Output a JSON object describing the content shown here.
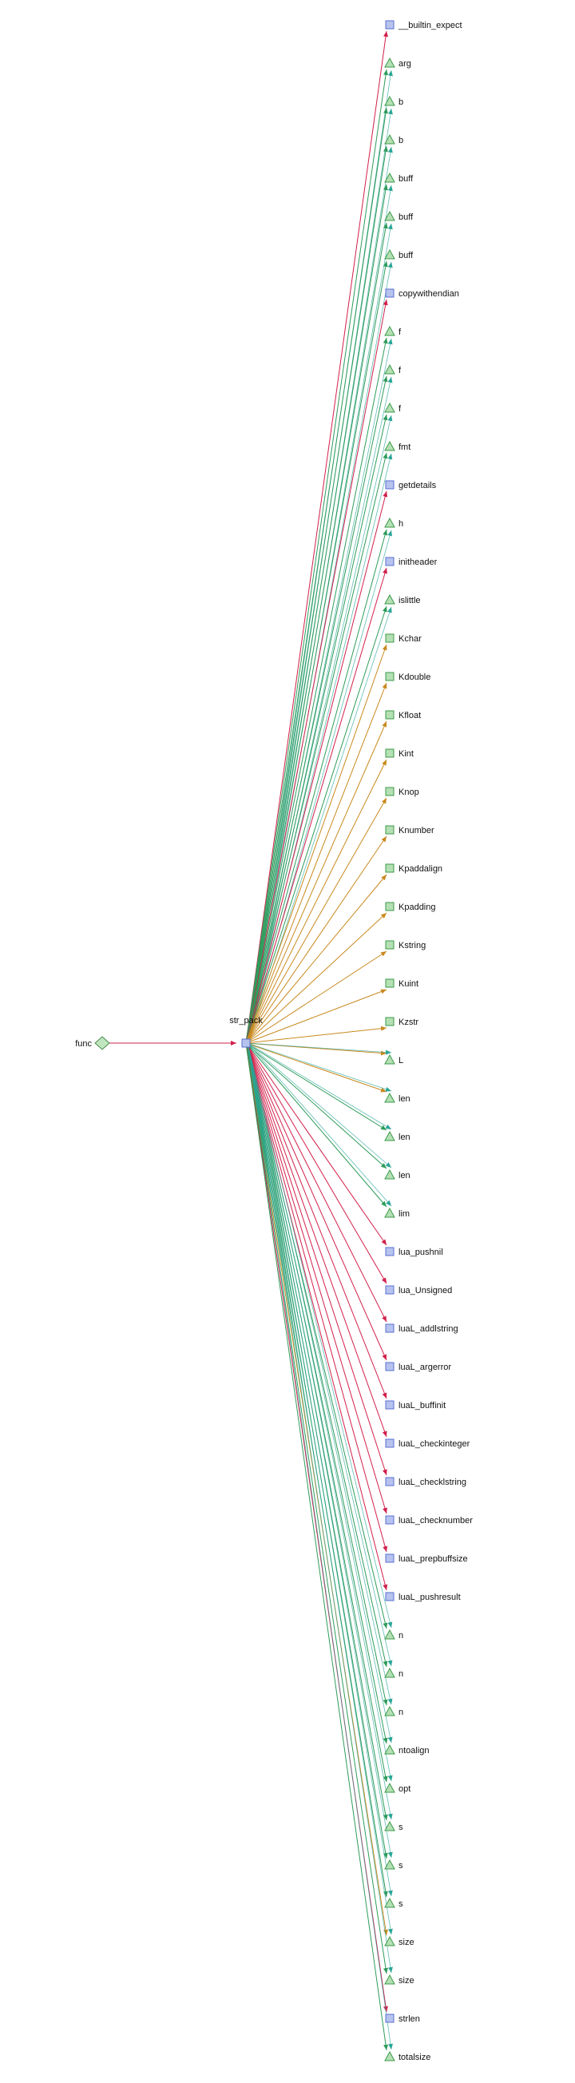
{
  "source": {
    "label": "func",
    "shape": "diamond"
  },
  "center": {
    "label": "str_pack",
    "shape": "square"
  },
  "colors": {
    "square_fill": "#b7c3ef",
    "square_stroke": "#5a6fcf",
    "green_fill": "#b4e0b4",
    "green_stroke": "#3c9a4a",
    "diamond_fill": "#bfe6bf",
    "diamond_stroke": "#4a8a4a",
    "edge_red": "#d21f4a",
    "edge_orange": "#c9891e",
    "edge_green": "#2e9b5a",
    "edge_teal": "#2aa597",
    "edge_olive": "#8f9a3a"
  },
  "nodes": [
    {
      "label": "__builtin_expect",
      "shape": "square",
      "edge": "red"
    },
    {
      "label": "arg",
      "shape": "triangle",
      "edge": "green"
    },
    {
      "label": "b",
      "shape": "triangle",
      "edge": "green"
    },
    {
      "label": "b",
      "shape": "triangle",
      "edge": "green"
    },
    {
      "label": "buff",
      "shape": "triangle",
      "edge": "green"
    },
    {
      "label": "buff",
      "shape": "triangle",
      "edge": "green"
    },
    {
      "label": "buff",
      "shape": "triangle",
      "edge": "green"
    },
    {
      "label": "copywithendian",
      "shape": "square",
      "edge": "red"
    },
    {
      "label": "f",
      "shape": "triangle",
      "edge": "green"
    },
    {
      "label": "f",
      "shape": "triangle",
      "edge": "green"
    },
    {
      "label": "f",
      "shape": "triangle",
      "edge": "green"
    },
    {
      "label": "fmt",
      "shape": "triangle",
      "edge": "green"
    },
    {
      "label": "getdetails",
      "shape": "square",
      "edge": "red"
    },
    {
      "label": "h",
      "shape": "triangle",
      "edge": "green"
    },
    {
      "label": "initheader",
      "shape": "square",
      "edge": "red"
    },
    {
      "label": "islittle",
      "shape": "triangle",
      "edge": "green"
    },
    {
      "label": "Kchar",
      "shape": "rect",
      "edge": "orange"
    },
    {
      "label": "Kdouble",
      "shape": "rect",
      "edge": "orange"
    },
    {
      "label": "Kfloat",
      "shape": "rect",
      "edge": "orange"
    },
    {
      "label": "Kint",
      "shape": "rect",
      "edge": "orange"
    },
    {
      "label": "Knop",
      "shape": "rect",
      "edge": "orange"
    },
    {
      "label": "Knumber",
      "shape": "rect",
      "edge": "orange"
    },
    {
      "label": "Kpaddalign",
      "shape": "rect",
      "edge": "orange"
    },
    {
      "label": "Kpadding",
      "shape": "rect",
      "edge": "orange"
    },
    {
      "label": "Kstring",
      "shape": "rect",
      "edge": "orange"
    },
    {
      "label": "Kuint",
      "shape": "rect",
      "edge": "orange"
    },
    {
      "label": "Kzstr",
      "shape": "rect",
      "edge": "orange"
    },
    {
      "label": "L",
      "shape": "triangle",
      "edge": "orange"
    },
    {
      "label": "len",
      "shape": "triangle",
      "edge": "orange"
    },
    {
      "label": "len",
      "shape": "triangle",
      "edge": "green"
    },
    {
      "label": "len",
      "shape": "triangle",
      "edge": "green"
    },
    {
      "label": "lim",
      "shape": "triangle",
      "edge": "green"
    },
    {
      "label": "lua_pushnil",
      "shape": "square",
      "edge": "red"
    },
    {
      "label": "lua_Unsigned",
      "shape": "square",
      "edge": "red"
    },
    {
      "label": "luaL_addlstring",
      "shape": "square",
      "edge": "red"
    },
    {
      "label": "luaL_argerror",
      "shape": "square",
      "edge": "red"
    },
    {
      "label": "luaL_buffinit",
      "shape": "square",
      "edge": "red"
    },
    {
      "label": "luaL_checkinteger",
      "shape": "square",
      "edge": "red"
    },
    {
      "label": "luaL_checklstring",
      "shape": "square",
      "edge": "red"
    },
    {
      "label": "luaL_checknumber",
      "shape": "square",
      "edge": "red"
    },
    {
      "label": "luaL_prepbuffsize",
      "shape": "square",
      "edge": "red"
    },
    {
      "label": "luaL_pushresult",
      "shape": "square",
      "edge": "red"
    },
    {
      "label": "n",
      "shape": "triangle",
      "edge": "green"
    },
    {
      "label": "n",
      "shape": "triangle",
      "edge": "green"
    },
    {
      "label": "n",
      "shape": "triangle",
      "edge": "green"
    },
    {
      "label": "ntoalign",
      "shape": "triangle",
      "edge": "green"
    },
    {
      "label": "opt",
      "shape": "triangle",
      "edge": "green"
    },
    {
      "label": "s",
      "shape": "triangle",
      "edge": "green"
    },
    {
      "label": "s",
      "shape": "triangle",
      "edge": "green"
    },
    {
      "label": "s",
      "shape": "triangle",
      "edge": "green"
    },
    {
      "label": "size",
      "shape": "triangle",
      "edge": "orange"
    },
    {
      "label": "size",
      "shape": "triangle",
      "edge": "green"
    },
    {
      "label": "strlen",
      "shape": "square",
      "edge": "red"
    },
    {
      "label": "totalsize",
      "shape": "triangle",
      "edge": "green"
    }
  ]
}
